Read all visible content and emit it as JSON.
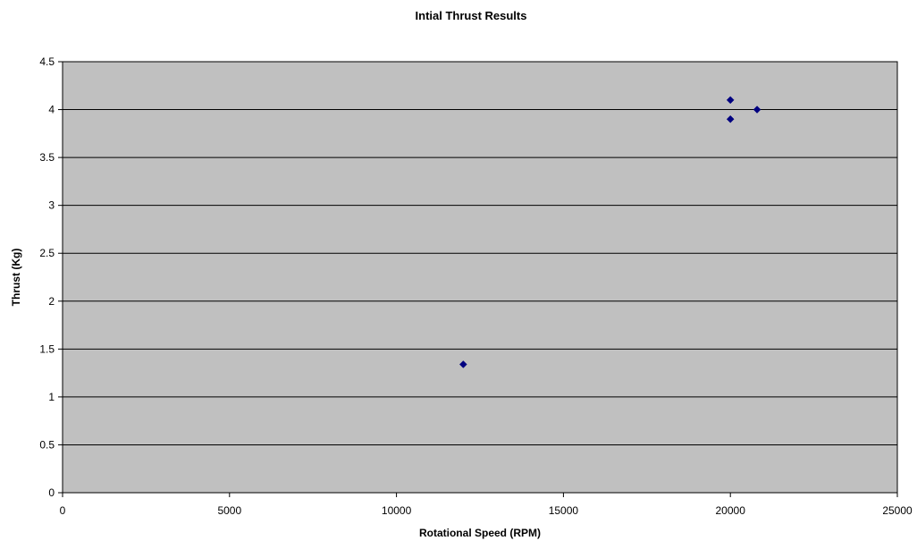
{
  "chart_data": {
    "type": "scatter",
    "title": "Intial Thrust Results",
    "xlabel": "Rotational Speed (RPM)",
    "ylabel": "Thrust (Kg)",
    "xlim": [
      0,
      25000
    ],
    "ylim": [
      0,
      4.5
    ],
    "x_ticks": [
      0,
      5000,
      10000,
      15000,
      20000,
      25000
    ],
    "y_ticks": [
      0,
      0.5,
      1,
      1.5,
      2,
      2.5,
      3,
      3.5,
      4,
      4.5
    ],
    "grid": "horizontal",
    "plot_background": "#c0c0c0",
    "marker": "diamond",
    "series": [
      {
        "color": "#000080",
        "points": [
          {
            "x": 12000,
            "y": 1.34
          },
          {
            "x": 20000,
            "y": 3.9
          },
          {
            "x": 20000,
            "y": 4.1
          },
          {
            "x": 20800,
            "y": 4.0
          }
        ]
      }
    ]
  }
}
